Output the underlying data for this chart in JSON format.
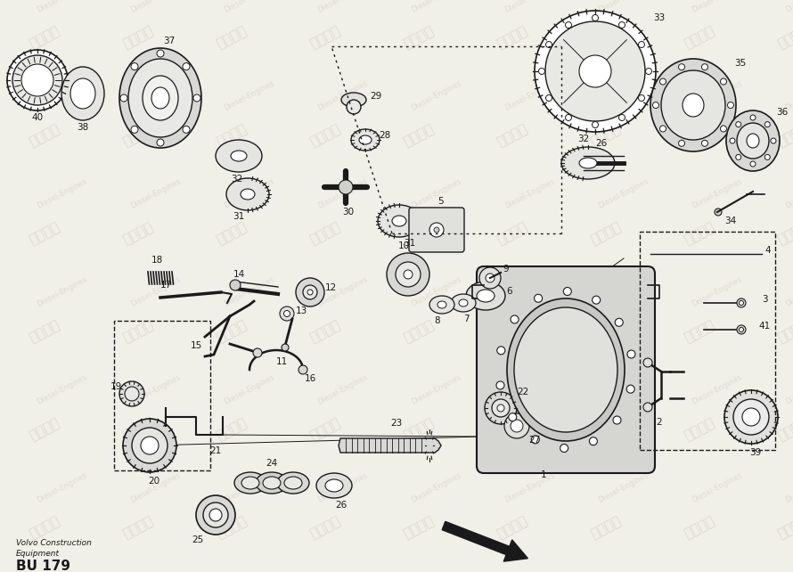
{
  "bg_color": "#f0efe8",
  "line_color": "#1a1a1a",
  "footer_line1": "Volvo Construction",
  "footer_line2": "Equipment",
  "footer_line3": "BU 179",
  "wm_texts": [
    "紫发动力",
    "Diesel-Engines"
  ]
}
